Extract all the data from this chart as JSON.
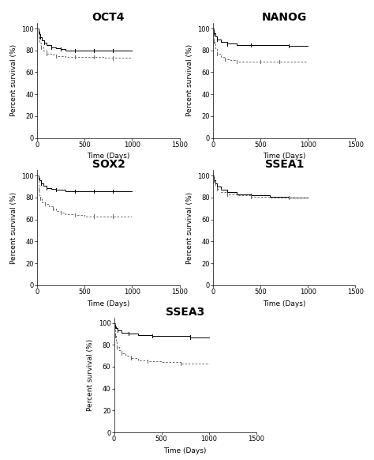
{
  "titles": [
    "OCT4",
    "NANOG",
    "SOX2",
    "SSEA1",
    "SSEA3"
  ],
  "xlabel": "Time (Days)",
  "ylabel": "Percent survival (%)",
  "xlim": [
    0,
    1500
  ],
  "ylim": [
    0,
    105
  ],
  "xticks": [
    0,
    500,
    1000,
    1500
  ],
  "yticks": [
    0,
    20,
    40,
    60,
    80,
    100
  ],
  "title_fontsize": 10,
  "axis_fontsize": 6.5,
  "tick_fontsize": 6,
  "background_color": "#ffffff",
  "line1_color": "#000000",
  "line2_color": "#666666",
  "curves": {
    "OCT4": {
      "solid": {
        "x": [
          0,
          10,
          10,
          20,
          20,
          30,
          30,
          50,
          50,
          70,
          70,
          100,
          100,
          150,
          150,
          200,
          200,
          250,
          250,
          300,
          300,
          400,
          400,
          500,
          500,
          600,
          600,
          700,
          700,
          800,
          800,
          900,
          900,
          1000
        ],
        "y": [
          100,
          100,
          97,
          97,
          95,
          95,
          92,
          92,
          89,
          89,
          87,
          87,
          85,
          85,
          83,
          83,
          82,
          82,
          81,
          81,
          80,
          80,
          80,
          80,
          80,
          80,
          80,
          80,
          80,
          80,
          80,
          80,
          80,
          80
        ]
      },
      "dashed": {
        "x": [
          0,
          10,
          10,
          20,
          20,
          40,
          40,
          60,
          60,
          100,
          100,
          150,
          150,
          200,
          200,
          300,
          300,
          400,
          400,
          500,
          500,
          600,
          600,
          700,
          700,
          800,
          800,
          900,
          900,
          1000
        ],
        "y": [
          100,
          100,
          92,
          92,
          87,
          87,
          83,
          83,
          80,
          80,
          77,
          77,
          76,
          76,
          75,
          75,
          74,
          74,
          74,
          74,
          74,
          74,
          74,
          74,
          73,
          73,
          73,
          73,
          73,
          73
        ]
      },
      "solid_ticks": [
        10,
        30,
        70,
        150,
        250,
        400,
        600,
        800
      ],
      "dashed_ticks": [
        10,
        40,
        100,
        200,
        400,
        600,
        800
      ]
    },
    "NANOG": {
      "solid": {
        "x": [
          0,
          10,
          10,
          20,
          20,
          40,
          40,
          80,
          80,
          150,
          150,
          250,
          250,
          400,
          400,
          600,
          600,
          800,
          800,
          1000
        ],
        "y": [
          100,
          100,
          96,
          96,
          93,
          93,
          90,
          90,
          88,
          88,
          86,
          86,
          85,
          85,
          85,
          85,
          85,
          85,
          84,
          84
        ]
      },
      "dashed": {
        "x": [
          0,
          10,
          10,
          20,
          20,
          40,
          40,
          80,
          80,
          120,
          120,
          180,
          180,
          250,
          250,
          350,
          350,
          500,
          500,
          700,
          700,
          1000
        ],
        "y": [
          100,
          100,
          88,
          88,
          82,
          82,
          77,
          77,
          74,
          74,
          72,
          72,
          71,
          71,
          70,
          70,
          70,
          70,
          70,
          70,
          70,
          70
        ]
      },
      "solid_ticks": [
        10,
        40,
        150,
        400,
        800
      ],
      "dashed_ticks": [
        10,
        40,
        120,
        250,
        500,
        700
      ]
    },
    "SOX2": {
      "solid": {
        "x": [
          0,
          10,
          10,
          20,
          20,
          40,
          40,
          60,
          60,
          100,
          100,
          150,
          150,
          200,
          200,
          300,
          300,
          400,
          400,
          500,
          500,
          600,
          600,
          700,
          700,
          800,
          800,
          900,
          900,
          1000
        ],
        "y": [
          100,
          100,
          98,
          98,
          96,
          96,
          93,
          93,
          91,
          91,
          89,
          89,
          88,
          88,
          87,
          87,
          86,
          86,
          86,
          86,
          86,
          86,
          86,
          86,
          86,
          86,
          86,
          86,
          86,
          86
        ]
      },
      "dashed": {
        "x": [
          0,
          10,
          10,
          20,
          20,
          30,
          30,
          50,
          50,
          80,
          80,
          120,
          120,
          160,
          160,
          200,
          200,
          250,
          250,
          300,
          300,
          400,
          400,
          500,
          500,
          600,
          600,
          700,
          700,
          800,
          800,
          1000
        ],
        "y": [
          100,
          100,
          88,
          88,
          82,
          82,
          79,
          79,
          76,
          76,
          74,
          74,
          72,
          72,
          70,
          70,
          68,
          68,
          66,
          66,
          65,
          65,
          64,
          64,
          63,
          63,
          63,
          63,
          63,
          63,
          63,
          63
        ]
      },
      "solid_ticks": [
        10,
        40,
        100,
        200,
        400,
        600,
        800
      ],
      "dashed_ticks": [
        10,
        30,
        80,
        160,
        250,
        400,
        600,
        800
      ]
    },
    "SSEA1": {
      "solid": {
        "x": [
          0,
          10,
          10,
          20,
          20,
          40,
          40,
          80,
          80,
          150,
          150,
          250,
          250,
          400,
          400,
          600,
          600,
          800,
          800,
          1000
        ],
        "y": [
          100,
          100,
          96,
          96,
          93,
          93,
          90,
          90,
          87,
          87,
          85,
          85,
          83,
          83,
          82,
          82,
          81,
          81,
          80,
          80
        ]
      },
      "dashed": {
        "x": [
          0,
          10,
          10,
          20,
          20,
          40,
          40,
          80,
          80,
          150,
          150,
          250,
          250,
          400,
          400,
          600,
          600,
          800,
          800,
          1000
        ],
        "y": [
          100,
          100,
          95,
          95,
          91,
          91,
          88,
          88,
          85,
          85,
          83,
          83,
          82,
          82,
          81,
          81,
          80,
          80,
          80,
          80
        ]
      },
      "solid_ticks": [
        10,
        40,
        150,
        400,
        800
      ],
      "dashed_ticks": [
        10,
        40,
        150,
        400,
        800
      ]
    },
    "SSEA3": {
      "solid": {
        "x": [
          0,
          10,
          10,
          20,
          20,
          40,
          40,
          80,
          80,
          150,
          150,
          250,
          250,
          400,
          400,
          600,
          600,
          800,
          800,
          1000
        ],
        "y": [
          100,
          100,
          97,
          97,
          95,
          95,
          93,
          93,
          91,
          91,
          90,
          90,
          89,
          89,
          88,
          88,
          88,
          88,
          87,
          87
        ]
      },
      "dashed": {
        "x": [
          0,
          10,
          10,
          20,
          20,
          30,
          30,
          50,
          50,
          80,
          80,
          120,
          120,
          180,
          180,
          250,
          250,
          350,
          350,
          500,
          500,
          700,
          700,
          900,
          900,
          1000
        ],
        "y": [
          100,
          100,
          88,
          88,
          82,
          82,
          78,
          78,
          75,
          75,
          72,
          72,
          70,
          70,
          68,
          68,
          66,
          66,
          65,
          65,
          64,
          64,
          63,
          63,
          63,
          63
        ]
      },
      "solid_ticks": [
        10,
        40,
        150,
        400,
        800
      ],
      "dashed_ticks": [
        10,
        30,
        80,
        180,
        350,
        700
      ]
    }
  }
}
